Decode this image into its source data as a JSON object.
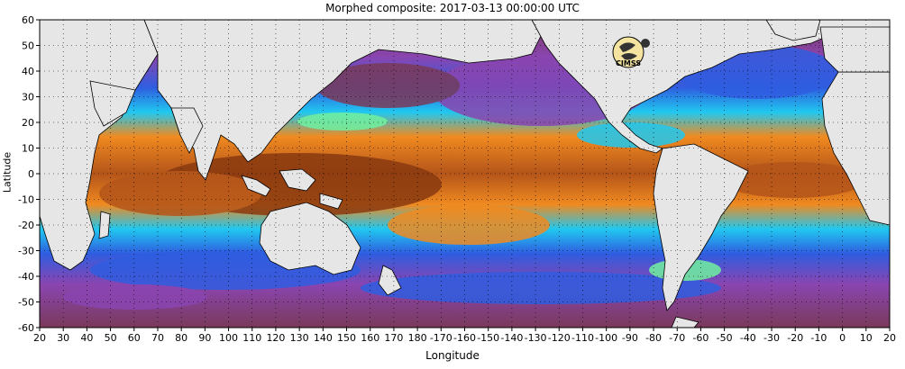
{
  "title": "Morphed composite: 2017-03-13 00:00:00 UTC",
  "logo_text": "CIMSS",
  "xlabel": "Longitude",
  "ylabel": "Latitude",
  "x_ticks": [
    "20",
    "30",
    "40",
    "50",
    "60",
    "70",
    "80",
    "90",
    "100",
    "110",
    "120",
    "130",
    "140",
    "150",
    "160",
    "170",
    "180",
    "-170",
    "-160",
    "-150",
    "-140",
    "-130",
    "-120",
    "-110",
    "-100",
    "-90",
    "-80",
    "-70",
    "-60",
    "-50",
    "-40",
    "-30",
    "-20",
    "-10",
    "0",
    "10",
    "20"
  ],
  "y_ticks": [
    "60",
    "50",
    "40",
    "30",
    "20",
    "10",
    "0",
    "-10",
    "-20",
    "-30",
    "-40",
    "-50",
    "-60"
  ],
  "colors": {
    "land": "#e6e6e6",
    "dry": "#7a3a5a",
    "low_moisture": "#8a45b0",
    "mid_low": "#2f5de0",
    "mid": "#20c8f0",
    "mid_high": "#70f0a0",
    "high": "#f08a20",
    "very_high": "#8a3a10",
    "frame": "#000000"
  }
}
